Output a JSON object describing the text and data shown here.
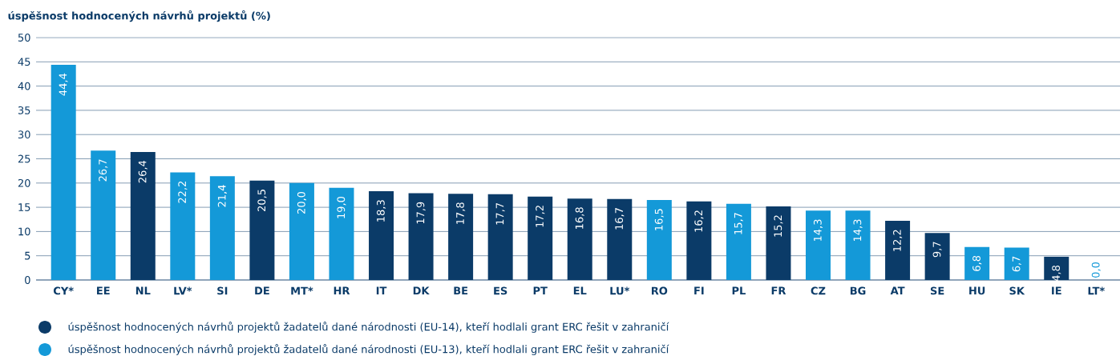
{
  "chart_data": {
    "type": "bar",
    "ylabel": "úspěšnost hodnocených návrhů projektů (%)",
    "categories": [
      "CY*",
      "EE",
      "NL",
      "LV*",
      "SI",
      "DE",
      "MT*",
      "HR",
      "IT",
      "DK",
      "BE",
      "ES",
      "PT",
      "EL",
      "LU*",
      "RO",
      "FI",
      "PL",
      "FR",
      "CZ",
      "BG",
      "AT",
      "SE",
      "HU",
      "SK",
      "IE",
      "LT*"
    ],
    "series": [
      {
        "name": "úspěšnost hodnocených návrhů projektů žadatelů dané národnosti (EU-14), kteří hodlali grant ERC řešit v zahraničí",
        "color": "#0b3b68",
        "values": [
          null,
          null,
          26.4,
          null,
          null,
          20.5,
          null,
          null,
          18.3,
          17.9,
          17.8,
          17.7,
          17.2,
          16.8,
          16.7,
          null,
          16.2,
          null,
          15.2,
          null,
          null,
          12.2,
          9.7,
          null,
          null,
          4.8,
          null
        ],
        "value_labels": [
          null,
          null,
          "26,4",
          null,
          null,
          "20,5",
          null,
          null,
          "18,3",
          "17,9",
          "17,8",
          "17,7",
          "17,2",
          "16,8",
          "16,7",
          null,
          "16,2",
          null,
          "15,2",
          null,
          null,
          "12,2",
          "9,7",
          null,
          null,
          "4,8",
          null
        ]
      },
      {
        "name": "úspěšnost hodnocených návrhů projektů žadatelů dané národnosti (EU-13), kteří hodlali grant ERC řešit v zahraničí",
        "color": "#1499d8",
        "values": [
          44.4,
          26.7,
          null,
          22.2,
          21.4,
          null,
          20.0,
          19.0,
          null,
          null,
          null,
          null,
          null,
          null,
          null,
          16.5,
          null,
          15.7,
          null,
          14.3,
          14.3,
          null,
          null,
          6.8,
          6.7,
          null,
          0.0
        ],
        "value_labels": [
          "44,4",
          "26,7",
          null,
          "22,2",
          "21,4",
          null,
          "20,0",
          "19,0",
          null,
          null,
          null,
          null,
          null,
          null,
          null,
          "16,5",
          null,
          "15,7",
          null,
          "14,3",
          "14,3",
          null,
          null,
          "6,8",
          "6,7",
          null,
          "0,0"
        ]
      }
    ],
    "ylim": [
      0,
      50
    ],
    "yticks": [
      0,
      5,
      10,
      15,
      20,
      25,
      30,
      35,
      40,
      45,
      50
    ],
    "grid": "y",
    "legend": "bottom",
    "marker": "circle"
  }
}
